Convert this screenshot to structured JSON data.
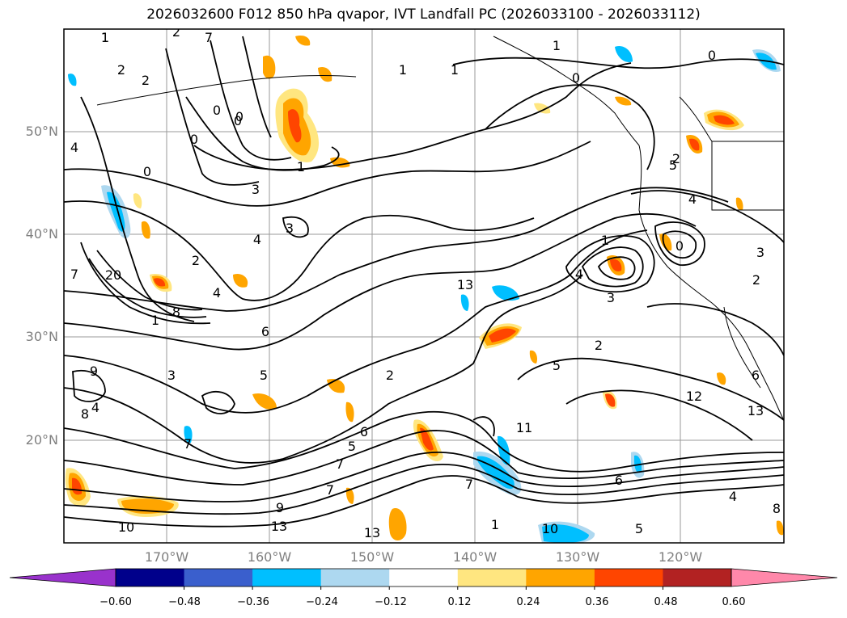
{
  "title": "2026032600 F012 850 hPa qvapor, IVT Landfall PC (2026033100 - 2026033112)",
  "map": {
    "lat_ticks": [
      "50°N",
      "40°N",
      "30°N",
      "20°N"
    ],
    "lon_ticks": [
      "170°W",
      "160°W",
      "150°W",
      "140°W",
      "130°W",
      "120°W"
    ],
    "lon_range": [
      -180,
      -110
    ],
    "lat_range": [
      10,
      60
    ],
    "grid": true,
    "contour_labels": [
      "1",
      "2",
      "0",
      "2",
      "1",
      "1",
      "1",
      "0",
      "0",
      "0",
      "0",
      "0",
      "4",
      "2",
      "0",
      "1",
      "2",
      "3",
      "3",
      "4",
      "2",
      "4",
      "7",
      "20",
      "1",
      "8",
      "6",
      "5",
      "3",
      "4",
      "9",
      "8",
      "7",
      "7",
      "5",
      "6",
      "7",
      "9",
      "10",
      "13",
      "13",
      "13",
      "5",
      "2",
      "7",
      "1",
      "10",
      "11",
      "2",
      "3",
      "4",
      "1",
      "0",
      "6",
      "5",
      "8",
      "12",
      "13",
      "4",
      "5",
      "3",
      "2",
      "6",
      "4",
      "7",
      "1"
    ]
  },
  "colorbar": {
    "ticks": [
      "−0.60",
      "−0.48",
      "−0.36",
      "−0.24",
      "−0.12",
      "0.12",
      "0.24",
      "0.36",
      "0.48",
      "0.60"
    ],
    "colors": [
      "#9932cc",
      "#00008b",
      "#3a5fcd",
      "#00bfff",
      "#add8f0",
      "#ffffff",
      "#ffe680",
      "#ffa500",
      "#ff4500",
      "#b22222",
      "#ff88aa"
    ],
    "extend": "both"
  }
}
